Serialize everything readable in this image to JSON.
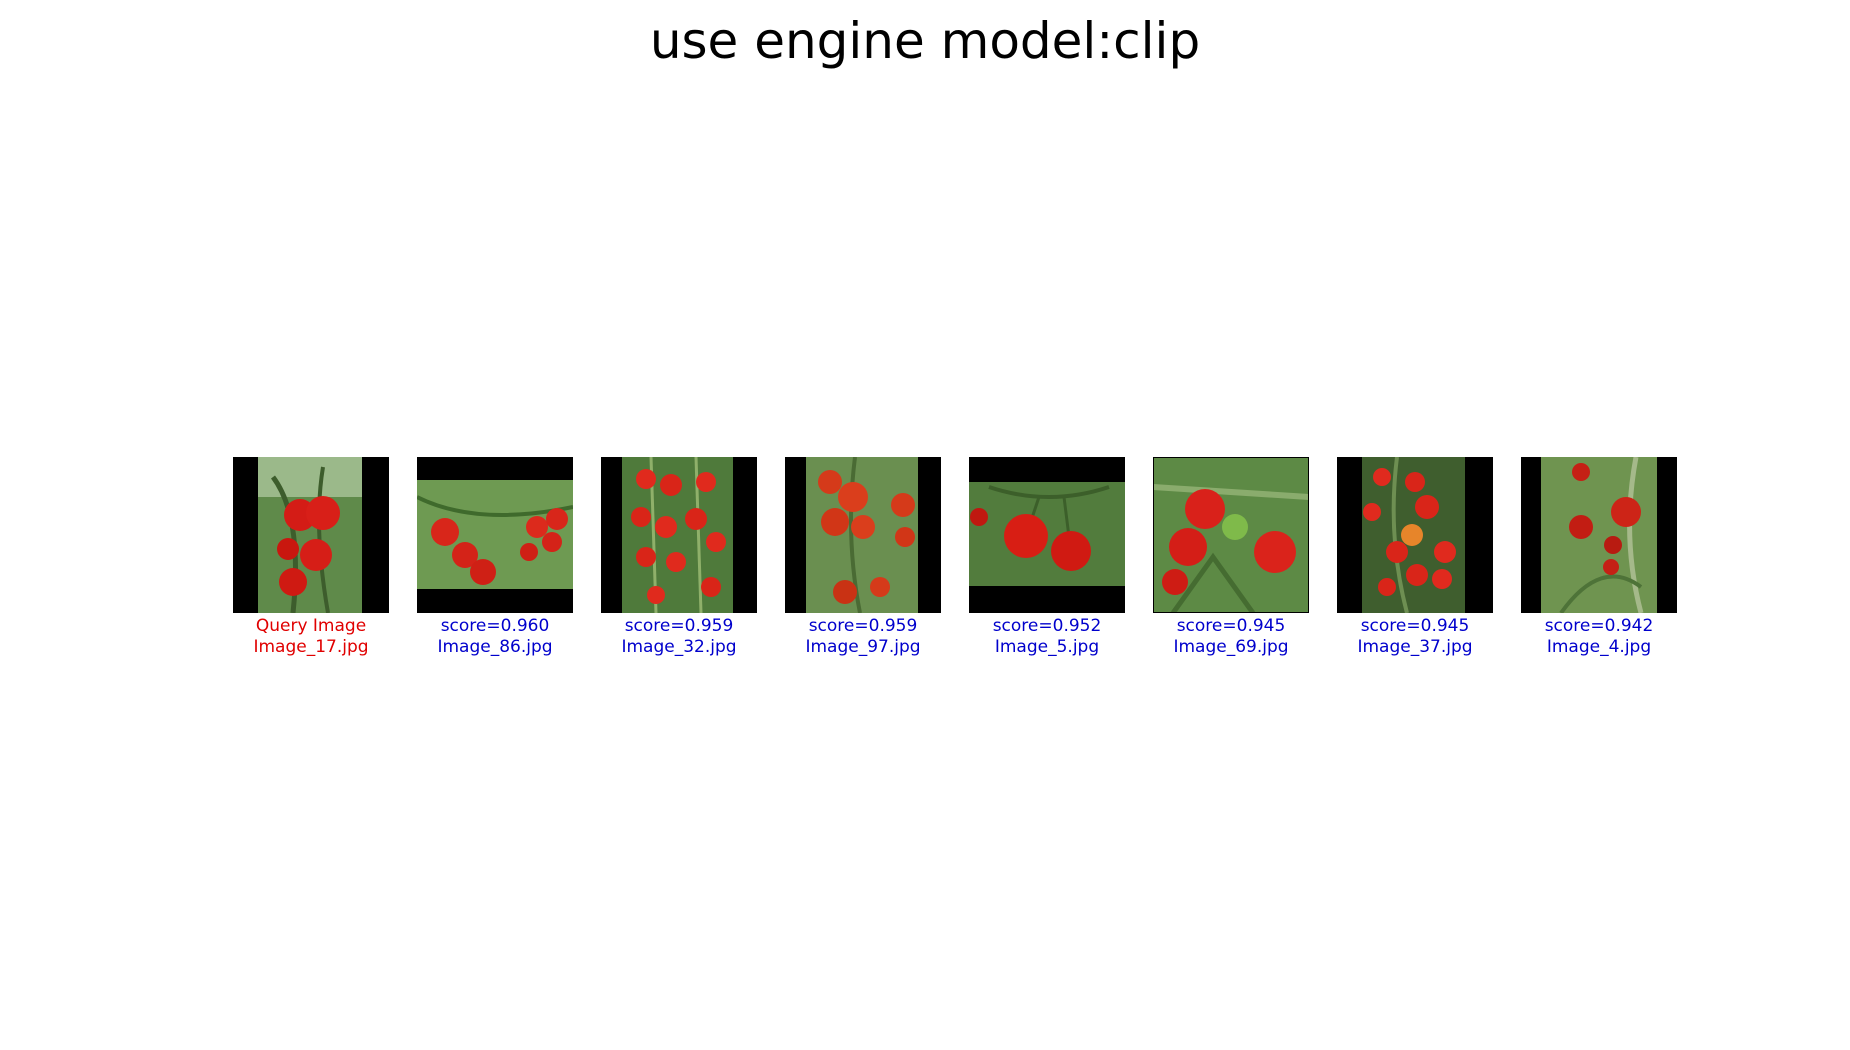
{
  "title": "use engine model:clip",
  "colors": {
    "query_caption": "#e00000",
    "result_caption": "#0000cc",
    "pad": "#000000"
  },
  "query": {
    "label": "Query Image",
    "filename": "Image_17.jpg"
  },
  "results": [
    {
      "score_text": "score=0.960",
      "filename": "Image_86.jpg"
    },
    {
      "score_text": "score=0.959",
      "filename": "Image_32.jpg"
    },
    {
      "score_text": "score=0.959",
      "filename": "Image_97.jpg"
    },
    {
      "score_text": "score=0.952",
      "filename": "Image_5.jpg"
    },
    {
      "score_text": "score=0.945",
      "filename": "Image_69.jpg"
    },
    {
      "score_text": "score=0.945",
      "filename": "Image_37.jpg"
    },
    {
      "score_text": "score=0.942",
      "filename": "Image_4.jpg"
    }
  ]
}
